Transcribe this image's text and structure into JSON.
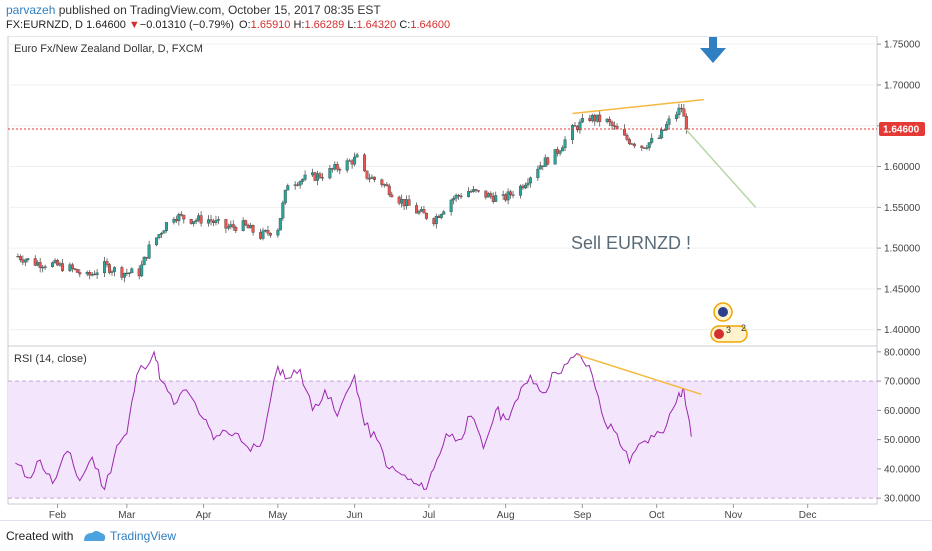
{
  "header": {
    "author": "parvazeh",
    "published_text": "published on TradingView.com, October 15, 2017 08:35 EST",
    "symbol": "FX:EURNZD, D",
    "last": "1.64600",
    "change_arrow": "▼",
    "change": "−0.01310 (−0.79%)",
    "o_label": "O:",
    "o_value": "1.65910",
    "h_label": "H:",
    "h_value": "1.66289",
    "l_label": "L:",
    "l_value": "1.64320",
    "c_label": "C:",
    "c_value": "1.64600"
  },
  "footer": {
    "created_with": "Created with",
    "brand": "TradingView"
  },
  "colors": {
    "up": "#26a69a",
    "down": "#ef5350",
    "candle_dark": "#333333",
    "trendline": "#f5b940",
    "projection": "#b7d7a8",
    "price_line": "#e53935",
    "rsi_line": "#9c27b0",
    "rsi_band": "#f3e5fb",
    "arrow": "#2f7fc1"
  },
  "chart_data": [
    {
      "type": "candlestick",
      "title": "Euro Fx/New Zealand Dollar, D, FXCM",
      "x_ticks": [
        "Feb",
        "Mar",
        "Apr",
        "May",
        "Jun",
        "Jul",
        "Aug",
        "Sep",
        "Oct",
        "Nov",
        "Dec"
      ],
      "y_ticks": [
        "1.75000",
        "1.70000",
        "1.65000",
        "1.60000",
        "1.55000",
        "1.50000",
        "1.45000",
        "1.40000"
      ],
      "ylim": [
        1.38,
        1.76
      ],
      "last_price_label": "1.64600",
      "annotation": "Sell EURNZD !",
      "marker_labels": [
        "3",
        "2"
      ],
      "close_path": [
        [
          "2017-01-16",
          1.49
        ],
        [
          "2017-01-23",
          1.482
        ],
        [
          "2017-01-30",
          1.48
        ],
        [
          "2017-02-06",
          1.475
        ],
        [
          "2017-02-13",
          1.465
        ],
        [
          "2017-02-20",
          1.478
        ],
        [
          "2017-02-27",
          1.47
        ],
        [
          "2017-03-06",
          1.47
        ],
        [
          "2017-03-10",
          1.5
        ],
        [
          "2017-03-17",
          1.53
        ],
        [
          "2017-03-20",
          1.54
        ],
        [
          "2017-03-27",
          1.535
        ],
        [
          "2017-04-03",
          1.535
        ],
        [
          "2017-04-10",
          1.525
        ],
        [
          "2017-04-17",
          1.528
        ],
        [
          "2017-04-24",
          1.515
        ],
        [
          "2017-05-01",
          1.525
        ],
        [
          "2017-05-05",
          1.58
        ],
        [
          "2017-05-12",
          1.585
        ],
        [
          "2017-05-19",
          1.59
        ],
        [
          "2017-05-26",
          1.6
        ],
        [
          "2017-06-02",
          1.61
        ],
        [
          "2017-06-05",
          1.59
        ],
        [
          "2017-06-12",
          1.58
        ],
        [
          "2017-06-19",
          1.56
        ],
        [
          "2017-06-26",
          1.545
        ],
        [
          "2017-07-03",
          1.535
        ],
        [
          "2017-07-10",
          1.56
        ],
        [
          "2017-07-17",
          1.57
        ],
        [
          "2017-07-24",
          1.565
        ],
        [
          "2017-07-31",
          1.56
        ],
        [
          "2017-08-07",
          1.575
        ],
        [
          "2017-08-14",
          1.6
        ],
        [
          "2017-08-21",
          1.615
        ],
        [
          "2017-08-28",
          1.645
        ],
        [
          "2017-09-04",
          1.66
        ],
        [
          "2017-09-11",
          1.655
        ],
        [
          "2017-09-18",
          1.635
        ],
        [
          "2017-09-25",
          1.625
        ],
        [
          "2017-10-02",
          1.635
        ],
        [
          "2017-10-06",
          1.655
        ],
        [
          "2017-10-11",
          1.672
        ],
        [
          "2017-10-13",
          1.646
        ]
      ],
      "trendline": {
        "start": [
          "2017-08-28",
          1.665
        ],
        "end": [
          "2017-10-20",
          1.682
        ]
      },
      "projection": {
        "start": [
          "2017-10-13",
          1.645
        ],
        "end": [
          "2017-11-10",
          1.55
        ]
      }
    },
    {
      "type": "line",
      "title": "RSI (14, close)",
      "y_ticks": [
        "80.0000",
        "70.0000",
        "60.0000",
        "50.0000",
        "40.0000",
        "30.0000"
      ],
      "ylim": [
        28,
        82
      ],
      "band": [
        30,
        70
      ],
      "series": [
        {
          "values": [
            [
              "2017-01-15",
              42
            ],
            [
              "2017-01-20",
              37
            ],
            [
              "2017-01-25",
              43
            ],
            [
              "2017-01-30",
              35
            ],
            [
              "2017-02-05",
              46
            ],
            [
              "2017-02-10",
              36
            ],
            [
              "2017-02-15",
              44
            ],
            [
              "2017-02-20",
              33
            ],
            [
              "2017-02-25",
              48
            ],
            [
              "2017-03-01",
              52
            ],
            [
              "2017-03-05",
              72
            ],
            [
              "2017-03-12",
              80
            ],
            [
              "2017-03-15",
              70
            ],
            [
              "2017-03-20",
              62
            ],
            [
              "2017-03-25",
              67
            ],
            [
              "2017-04-01",
              57
            ],
            [
              "2017-04-05",
              50
            ],
            [
              "2017-04-10",
              53
            ],
            [
              "2017-04-15",
              52
            ],
            [
              "2017-04-20",
              46
            ],
            [
              "2017-04-25",
              50
            ],
            [
              "2017-05-01",
              75
            ],
            [
              "2017-05-05",
              71
            ],
            [
              "2017-05-10",
              74
            ],
            [
              "2017-05-15",
              60
            ],
            [
              "2017-05-20",
              67
            ],
            [
              "2017-05-25",
              58
            ],
            [
              "2017-06-01",
              72
            ],
            [
              "2017-06-05",
              55
            ],
            [
              "2017-06-10",
              50
            ],
            [
              "2017-06-15",
              40
            ],
            [
              "2017-06-20",
              38
            ],
            [
              "2017-06-25",
              35
            ],
            [
              "2017-06-29",
              33
            ],
            [
              "2017-07-03",
              40
            ],
            [
              "2017-07-08",
              52
            ],
            [
              "2017-07-13",
              50
            ],
            [
              "2017-07-18",
              58
            ],
            [
              "2017-07-23",
              47
            ],
            [
              "2017-07-28",
              60
            ],
            [
              "2017-08-01",
              57
            ],
            [
              "2017-08-06",
              64
            ],
            [
              "2017-08-11",
              72
            ],
            [
              "2017-08-16",
              66
            ],
            [
              "2017-08-21",
              73
            ],
            [
              "2017-08-26",
              76
            ],
            [
              "2017-08-31",
              79
            ],
            [
              "2017-09-05",
              72
            ],
            [
              "2017-09-10",
              56
            ],
            [
              "2017-09-15",
              52
            ],
            [
              "2017-09-20",
              42
            ],
            [
              "2017-09-25",
              49
            ],
            [
              "2017-09-30",
              51
            ],
            [
              "2017-10-05",
              55
            ],
            [
              "2017-10-10",
              66
            ],
            [
              "2017-10-12",
              67
            ],
            [
              "2017-10-15",
              51
            ]
          ]
        }
      ],
      "trendline": {
        "start": [
          "2017-08-30",
          79
        ],
        "end": [
          "2017-10-19",
          65.5
        ]
      }
    }
  ]
}
